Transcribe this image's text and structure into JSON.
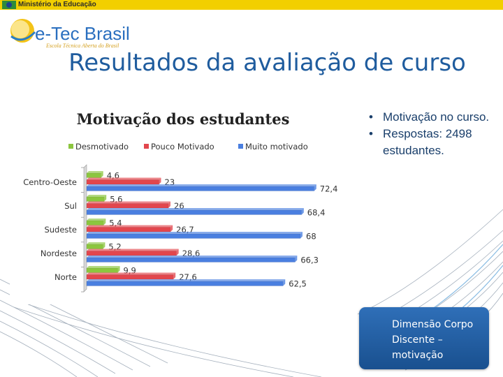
{
  "header": {
    "ministry": "Ministério da Educação",
    "brand": "e-Tec Brasil",
    "brand_subtitle": "Escola Técnica Aberta do Brasil"
  },
  "slide": {
    "title": "Resultados da avaliação de curso",
    "bullets": [
      "Motivação no curso.",
      "Respostas: 2498 estudantes."
    ],
    "callout": "Dimensão Corpo Discente – motivação"
  },
  "colors": {
    "title": "#1f5c9e",
    "green": "#8cc63f",
    "red": "#e2464d",
    "blue": "#4a7fe0",
    "callout": "#2361a8"
  },
  "chart_data": {
    "type": "bar",
    "orientation": "horizontal",
    "title": "Motivação dos estudantes",
    "categories": [
      "Centro-Oeste",
      "Sul",
      "Sudeste",
      "Nordeste",
      "Norte"
    ],
    "series": [
      {
        "name": "Desmotivado",
        "color": "#8cc63f",
        "values": [
          4.6,
          5.6,
          5.4,
          5.2,
          9.9
        ],
        "labels": [
          "4,6",
          "5,6",
          "5,4",
          "5,2",
          "9,9"
        ]
      },
      {
        "name": "Pouco Motivado",
        "color": "#e2464d",
        "values": [
          23,
          26,
          26.7,
          28.6,
          27.6
        ],
        "labels": [
          "23",
          "26",
          "26,7",
          "28,6",
          "27,6"
        ]
      },
      {
        "name": "Muito motivado",
        "color": "#4a7fe0",
        "values": [
          72.4,
          68.4,
          68,
          66.3,
          62.5
        ],
        "labels": [
          "72,4",
          "68,4",
          "68",
          "66,3",
          "62,5"
        ]
      }
    ],
    "legend": "top",
    "xlim": [
      0,
      80
    ],
    "grid": false
  }
}
